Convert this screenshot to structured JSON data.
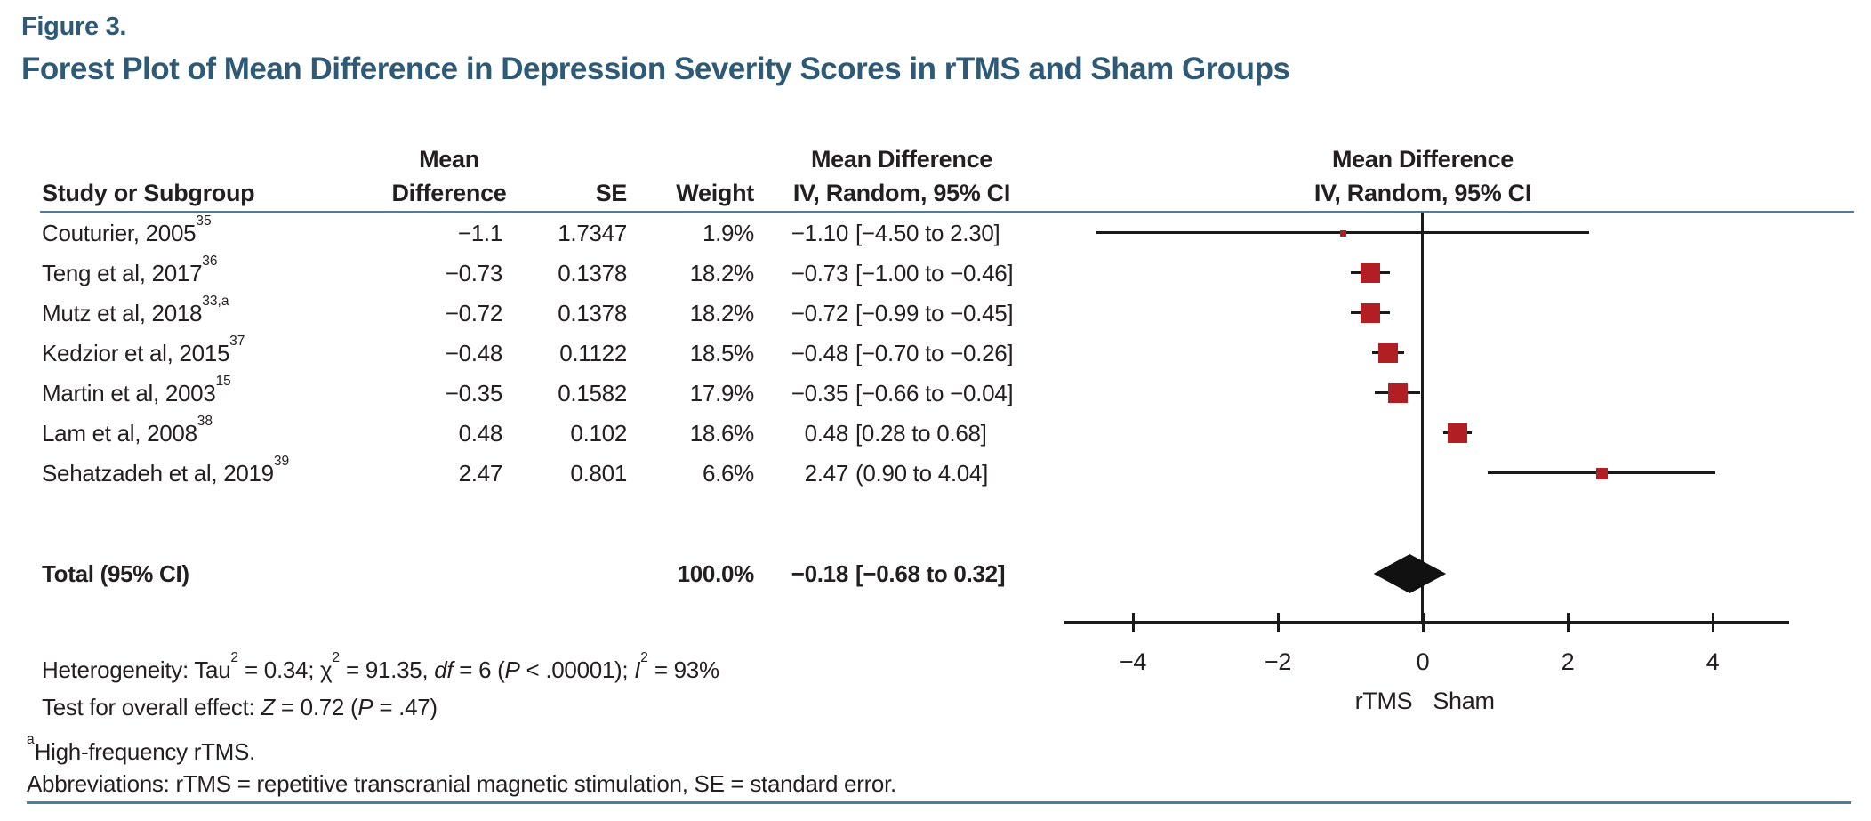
{
  "figure": {
    "label": "Figure 3.",
    "title": "Forest Plot of Mean Difference in Depression Severity Scores in rTMS and Sham Groups"
  },
  "table": {
    "headers": {
      "study": "Study or Subgroup",
      "md_line1": "Mean",
      "md_line2": "Difference",
      "se": "SE",
      "weight": "Weight",
      "ci_line1": "Mean Difference",
      "ci_line2": "IV, Random, 95% CI"
    },
    "plot_header": {
      "line1": "Mean Difference",
      "line2": "IV, Random, 95% CI"
    }
  },
  "chart_data": {
    "type": "forest",
    "effect_measure": "Mean Difference",
    "model": "IV, Random, 95% CI",
    "studies": [
      {
        "label": "Couturier, 2005",
        "ref": "35",
        "mean_difference": -1.1,
        "se": 1.7347,
        "md_text": "−1.1",
        "se_text": "1.7347",
        "weight": "1.9%",
        "est_text": "−1.10",
        "interval_text": "[−4.50 to 2.30]",
        "ci_lo": -4.5,
        "ci_hi": 2.3
      },
      {
        "label": "Teng et al, 2017",
        "ref": "36",
        "mean_difference": -0.73,
        "se": 0.1378,
        "md_text": "−0.73",
        "se_text": "0.1378",
        "weight": "18.2%",
        "est_text": "−0.73",
        "interval_text": "[−1.00 to −0.46]",
        "ci_lo": -1.0,
        "ci_hi": -0.46
      },
      {
        "label": "Mutz et al, 2018",
        "ref": "33,a",
        "mean_difference": -0.72,
        "se": 0.1378,
        "md_text": "−0.72",
        "se_text": "0.1378",
        "weight": "18.2%",
        "est_text": "−0.72",
        "interval_text": "[−0.99 to −0.45]",
        "ci_lo": -0.99,
        "ci_hi": -0.45
      },
      {
        "label": "Kedzior et al, 2015",
        "ref": "37",
        "mean_difference": -0.48,
        "se": 0.1122,
        "md_text": "−0.48",
        "se_text": "0.1122",
        "weight": "18.5%",
        "est_text": "−0.48",
        "interval_text": "[−0.70 to −0.26]",
        "ci_lo": -0.7,
        "ci_hi": -0.26
      },
      {
        "label": "Martin et al, 2003",
        "ref": "15",
        "mean_difference": -0.35,
        "se": 0.1582,
        "md_text": "−0.35",
        "se_text": "0.1582",
        "weight": "17.9%",
        "est_text": "−0.35",
        "interval_text": "[−0.66 to −0.04]",
        "ci_lo": -0.66,
        "ci_hi": -0.04
      },
      {
        "label": "Lam et al, 2008",
        "ref": "38",
        "mean_difference": 0.48,
        "se": 0.102,
        "md_text": "0.48",
        "se_text": "0.102",
        "weight": "18.6%",
        "est_text": "0.48",
        "interval_text": "[0.28 to 0.68]",
        "ci_lo": 0.28,
        "ci_hi": 0.68
      },
      {
        "label": "Sehatzadeh et al, 2019",
        "ref": "39",
        "mean_difference": 2.47,
        "se": 0.801,
        "md_text": "2.47",
        "se_text": "0.801",
        "weight": "6.6%",
        "est_text": "2.47",
        "interval_text": "(0.90 to 4.04]",
        "ci_lo": 0.9,
        "ci_hi": 4.04
      }
    ],
    "total": {
      "label": "Total (95% CI)",
      "weight": "100.0%",
      "est_text": "−0.18",
      "interval_text": "[−0.68 to 0.32]",
      "mean_difference": -0.18,
      "ci_lo": -0.68,
      "ci_hi": 0.32
    },
    "axis": {
      "ticks": [
        -4,
        -2,
        0,
        2,
        4
      ],
      "tick_labels": [
        "−4",
        "−2",
        "0",
        "2",
        "4"
      ],
      "range": [
        -4.95,
        5.05
      ],
      "zero_line": 0,
      "left_label": "rTMS",
      "right_label": "Sham"
    }
  },
  "stats": {
    "heterogeneity": [
      {
        "t": "Heterogeneity: Tau"
      },
      {
        "t": "2",
        "sup": true
      },
      {
        "t": " = 0.34; χ"
      },
      {
        "t": "2",
        "sup": true
      },
      {
        "t": " = 91.35, "
      },
      {
        "t": "df",
        "i": true
      },
      {
        "t": " = 6 ("
      },
      {
        "t": "P",
        "i": true
      },
      {
        "t": " < .00001); "
      },
      {
        "t": "I",
        "i": true
      },
      {
        "t": "2",
        "sup": true
      },
      {
        "t": " = 93%"
      }
    ],
    "overall_effect": [
      {
        "t": "Test for overall effect: "
      },
      {
        "t": "Z",
        "i": true
      },
      {
        "t": " = 0.72 ("
      },
      {
        "t": "P",
        "i": true
      },
      {
        "t": " = .47)"
      }
    ]
  },
  "footnotes": {
    "a_sup": "a",
    "a_text": "High-frequency rTMS.",
    "abbreviations": "Abbreviations: rTMS = repetitive transcranial magnetic stimulation, SE = standard error."
  },
  "colors": {
    "accent_teal": "#2e5a75",
    "rule_blue": "#4e7f98",
    "marker_red": "#b11f24",
    "diamond_black": "#111111"
  }
}
